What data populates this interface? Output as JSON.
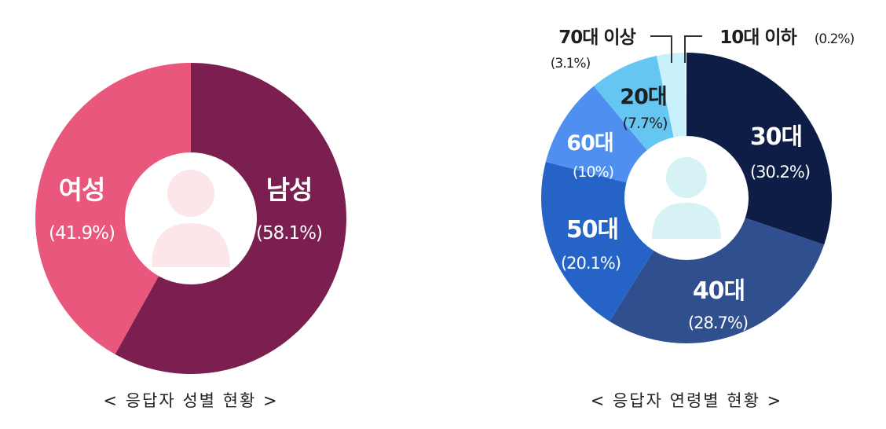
{
  "chart_data": [
    {
      "type": "pie",
      "categories": [
        "남성",
        "여성"
      ],
      "values": [
        58.1,
        41.9
      ],
      "value_labels": [
        "(58.1%)",
        "(41.9%)"
      ],
      "colors": [
        "#7a1f4f",
        "#e9577c"
      ],
      "center_icon_color": "#fde6ea",
      "title": "< 응답자 성별 현황 >"
    },
    {
      "type": "pie",
      "categories": [
        "30대",
        "40대",
        "50대",
        "60대",
        "20대",
        "70대 이상",
        "10대 이하"
      ],
      "values": [
        30.2,
        28.7,
        20.1,
        10,
        7.7,
        3.1,
        0.2
      ],
      "value_labels": [
        "(30.2%)",
        "(28.7%)",
        "(20.1%)",
        "(10%)",
        "(7.7%)",
        "(3.1%)",
        "(0.2%)"
      ],
      "colors": [
        "#0d1d45",
        "#2f4f8f",
        "#2563c7",
        "#4f8ff0",
        "#66c6f2",
        "#c9f1fb",
        "#e8f8fc"
      ],
      "center_icon_color": "#d7f2f4",
      "title": "< 응답자 연령별 현황 >"
    }
  ]
}
